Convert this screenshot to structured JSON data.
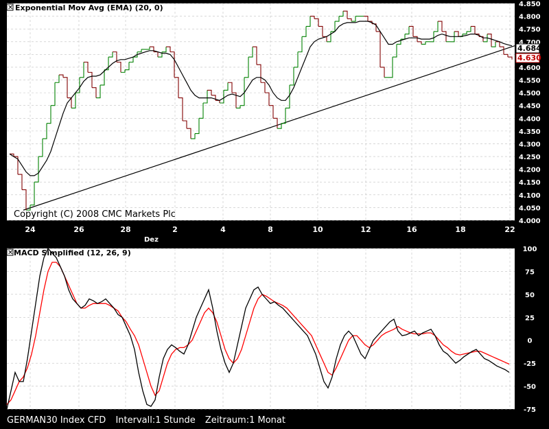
{
  "footer": {
    "instrument": "GERMAN30 Index CFD",
    "interval": "Intervall:1 Stunde",
    "period": "Zeitraum:1 Monat"
  },
  "colors": {
    "background": "#000000",
    "panel": "#ffffff",
    "up": "#008000",
    "down": "#800000",
    "ema": "#000000",
    "macd": "#000000",
    "signal": "#ff0000",
    "grid": "#c0c0c0",
    "price_badge_bg": "#ffffff",
    "price_badge_text": "#c00000"
  },
  "chart_data": [
    {
      "type": "line",
      "title": "Exponential Mov Avg (EMA) (20, 0)",
      "watermark": "Copyright (C) 2008 CMC Markets Plc",
      "x_ticks": [
        "24",
        "26",
        "28",
        "2",
        "4",
        "6",
        "8",
        "10",
        "12",
        "16",
        "18",
        "22"
      ],
      "x_sub_label": "Dez",
      "ylim": [
        4000,
        4850
      ],
      "y_ticks": [
        "4.000",
        "4.050",
        "4.100",
        "4.150",
        "4.200",
        "4.250",
        "4.300",
        "4.350",
        "4.400",
        "4.450",
        "4.500",
        "4.550",
        "4.600",
        "4.650",
        "4.700",
        "4.750",
        "4.800",
        "4.850"
      ],
      "price_labels": [
        "4.684",
        "4.630"
      ],
      "price": [
        4260,
        4250,
        4180,
        4120,
        4040,
        4060,
        4150,
        4250,
        4320,
        4380,
        4450,
        4540,
        4570,
        4560,
        4480,
        4440,
        4500,
        4560,
        4620,
        4580,
        4520,
        4480,
        4530,
        4590,
        4640,
        4660,
        4620,
        4580,
        4590,
        4620,
        4640,
        4660,
        4670,
        4670,
        4680,
        4660,
        4640,
        4660,
        4680,
        4660,
        4560,
        4480,
        4390,
        4360,
        4320,
        4340,
        4400,
        4460,
        4510,
        4490,
        4470,
        4460,
        4510,
        4540,
        4500,
        4440,
        4450,
        4560,
        4640,
        4680,
        4610,
        4540,
        4500,
        4450,
        4400,
        4360,
        4380,
        4440,
        4530,
        4600,
        4660,
        4720,
        4760,
        4800,
        4790,
        4760,
        4720,
        4700,
        4740,
        4780,
        4800,
        4820,
        4790,
        4780,
        4800,
        4800,
        4800,
        4780,
        4770,
        4740,
        4600,
        4560,
        4560,
        4640,
        4690,
        4710,
        4730,
        4760,
        4720,
        4700,
        4690,
        4700,
        4700,
        4740,
        4780,
        4740,
        4700,
        4700,
        4740,
        4720,
        4730,
        4740,
        4760,
        4730,
        4720,
        4700,
        4730,
        4680,
        4700,
        4680,
        4650,
        4640,
        4630
      ],
      "ema": [
        4260,
        4250,
        4240,
        4215,
        4190,
        4175,
        4175,
        4185,
        4210,
        4235,
        4270,
        4320,
        4370,
        4420,
        4460,
        4480,
        4500,
        4520,
        4545,
        4560,
        4565,
        4565,
        4570,
        4585,
        4600,
        4615,
        4625,
        4630,
        4630,
        4635,
        4640,
        4650,
        4655,
        4660,
        4665,
        4665,
        4660,
        4655,
        4655,
        4650,
        4630,
        4600,
        4570,
        4540,
        4510,
        4490,
        4480,
        4480,
        4480,
        4480,
        4475,
        4470,
        4480,
        4490,
        4495,
        4490,
        4485,
        4500,
        4525,
        4550,
        4560,
        4560,
        4550,
        4530,
        4500,
        4480,
        4470,
        4470,
        4490,
        4520,
        4560,
        4600,
        4640,
        4680,
        4700,
        4710,
        4715,
        4720,
        4730,
        4740,
        4760,
        4770,
        4775,
        4775,
        4775,
        4780,
        4780,
        4780,
        4775,
        4765,
        4740,
        4715,
        4690,
        4690,
        4700,
        4705,
        4710,
        4715,
        4715,
        4715,
        4710,
        4710,
        4710,
        4715,
        4725,
        4730,
        4725,
        4720,
        4720,
        4720,
        4722,
        4725,
        4730,
        4730,
        4725,
        4715,
        4715,
        4710,
        4705,
        4700,
        4693,
        4688,
        4684
      ],
      "trendline": [
        [
          0,
          4040
        ],
        [
          123,
          4684
        ]
      ]
    },
    {
      "type": "line",
      "title": "MACD Simplified (12, 26, 9)",
      "ylim": [
        -75,
        100
      ],
      "y_ticks": [
        "100",
        "75",
        "50",
        "25",
        "0",
        "-25",
        "-50",
        "-75"
      ],
      "series": [
        {
          "name": "",
          "values": [
            -75,
            -55,
            -35,
            -45,
            -45,
            -20,
            10,
            40,
            70,
            90,
            100,
            95,
            90,
            80,
            70,
            55,
            45,
            40,
            35,
            38,
            45,
            43,
            40,
            42,
            45,
            40,
            35,
            28,
            25,
            15,
            5,
            -10,
            -35,
            -55,
            -70,
            -72,
            -65,
            -40,
            -20,
            -10,
            -5,
            -8,
            -12,
            -15,
            -5,
            10,
            25,
            35,
            45,
            55,
            35,
            10,
            -10,
            -25,
            -35,
            -25,
            -5,
            15,
            35,
            45,
            55,
            58,
            50,
            45,
            40,
            42,
            38,
            35,
            30,
            25,
            20,
            15,
            10,
            5,
            -5,
            -15,
            -30,
            -45,
            -52,
            -40,
            -20,
            -5,
            5,
            10,
            5,
            -5,
            -15,
            -20,
            -10,
            0,
            5,
            10,
            15,
            20,
            23,
            10,
            5,
            6,
            8,
            10,
            5,
            8,
            10,
            12,
            5,
            -5,
            -12,
            -15,
            -20,
            -25,
            -22,
            -18,
            -15,
            -12,
            -10,
            -15,
            -20,
            -22,
            -25,
            -28,
            -30,
            -32,
            -35
          ],
          "color": "#000000"
        },
        {
          "name": "",
          "values": [
            -70,
            -65,
            -55,
            -45,
            -40,
            -30,
            -15,
            5,
            30,
            55,
            75,
            85,
            85,
            80,
            70,
            60,
            50,
            40,
            35,
            35,
            38,
            40,
            40,
            40,
            40,
            38,
            35,
            32,
            25,
            20,
            12,
            5,
            -5,
            -20,
            -35,
            -50,
            -60,
            -55,
            -40,
            -25,
            -15,
            -10,
            -8,
            -8,
            -5,
            0,
            10,
            20,
            30,
            35,
            30,
            20,
            5,
            -10,
            -20,
            -25,
            -20,
            -10,
            5,
            20,
            35,
            45,
            50,
            48,
            45,
            42,
            40,
            38,
            35,
            30,
            25,
            20,
            15,
            10,
            5,
            -5,
            -15,
            -25,
            -35,
            -38,
            -30,
            -20,
            -10,
            0,
            5,
            5,
            0,
            -5,
            -8,
            -5,
            0,
            5,
            8,
            10,
            12,
            15,
            12,
            10,
            8,
            7,
            7,
            7,
            8,
            8,
            5,
            0,
            -5,
            -8,
            -12,
            -15,
            -16,
            -15,
            -14,
            -13,
            -12,
            -12,
            -14,
            -16,
            -18,
            -20,
            -22,
            -24,
            -26
          ],
          "color": "#ff0000"
        }
      ]
    }
  ]
}
